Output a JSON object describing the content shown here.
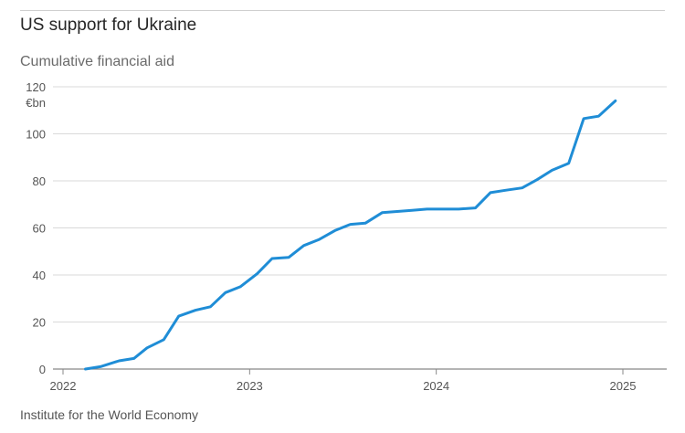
{
  "header": {
    "title": "US support for Ukraine",
    "subtitle": "Cumulative financial aid"
  },
  "footer": {
    "source": "Institute for the World Economy"
  },
  "chart_data": {
    "type": "line",
    "title": "US support for Ukraine",
    "subtitle": "Cumulative financial aid",
    "y_unit": "€bn",
    "ylim": [
      0,
      120
    ],
    "y_ticks": [
      0,
      20,
      40,
      60,
      80,
      100,
      120
    ],
    "x_ticks": [
      "2022",
      "2023",
      "2024",
      "2025"
    ],
    "x_tick_values": [
      2022,
      2023,
      2024,
      2025
    ],
    "grid": "horizontal",
    "line_color": "#1f8dd6",
    "series": [
      {
        "x": [
          2022.12,
          2022.2,
          2022.3,
          2022.38,
          2022.45,
          2022.54,
          2022.62,
          2022.71,
          2022.79,
          2022.87,
          2022.95,
          2023.04,
          2023.12,
          2023.21,
          2023.29,
          2023.37,
          2023.46,
          2023.54,
          2023.62,
          2023.71,
          2023.79,
          2023.87,
          2023.95,
          2024.04,
          2024.12,
          2024.21,
          2024.29,
          2024.37,
          2024.46,
          2024.54,
          2024.62,
          2024.71,
          2024.79,
          2024.87,
          2024.96
        ],
        "values": [
          0,
          1,
          3.5,
          4.5,
          9,
          12.5,
          22.5,
          25,
          26.5,
          32.5,
          35,
          40.5,
          47,
          47.5,
          52.5,
          55,
          59,
          61.5,
          62,
          66.5,
          67,
          67.5,
          68,
          68,
          68,
          68.5,
          75,
          76,
          77,
          80.5,
          84.5,
          87.5,
          106.5,
          107.5,
          114
        ]
      }
    ]
  },
  "source": "Institute for the World Economy"
}
